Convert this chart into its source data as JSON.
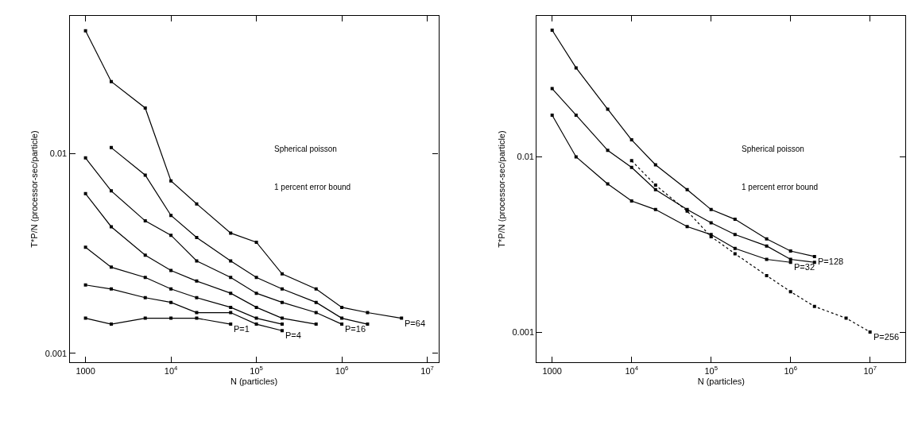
{
  "chart_data": [
    {
      "type": "line",
      "log": "xy",
      "marker": "square",
      "line_style": "solid",
      "xlabel": "N (particles)",
      "ylabel": "T*P/N (processor-sec/particle)",
      "xlim": [
        650,
        13500000
      ],
      "ylim": [
        0.0009,
        0.049
      ],
      "xticks": [
        {
          "value": 1000,
          "label": "1000"
        },
        {
          "value": 10000,
          "label": "10$^{4}$"
        },
        {
          "value": 100000,
          "label": "10$^{5}$"
        },
        {
          "value": 1000000,
          "label": "10$^{6}$"
        },
        {
          "value": 10000000,
          "label": "10$^{7}$"
        }
      ],
      "yticks": [
        0.001,
        0.01
      ],
      "series": [
        {
          "color": "#000000",
          "x": [
            1000,
            2000,
            5000,
            10000,
            20000,
            50000,
            100000,
            200000,
            500000,
            1000000,
            2000000,
            5000000
          ],
          "values": [
            0.0411,
            0.0229,
            0.0169,
            0.0073,
            0.0056,
            0.004,
            0.0036,
            0.0025,
            0.0021,
            0.0017,
            0.0016,
            0.0015
          ]
        },
        {
          "color": "#000000",
          "x": [
            2000,
            5000,
            10000,
            20000,
            50000,
            100000,
            200000,
            500000,
            1000000,
            2000000
          ],
          "values": [
            0.0107,
            0.0078,
            0.0049,
            0.0038,
            0.0029,
            0.0024,
            0.0021,
            0.0018,
            0.0015,
            0.0014
          ]
        },
        {
          "color": "#000000",
          "x": [
            1000,
            2000,
            5000,
            10000,
            20000,
            50000,
            100000,
            200000,
            500000,
            1000000
          ],
          "values": [
            0.0095,
            0.0065,
            0.0046,
            0.0039,
            0.0029,
            0.0024,
            0.002,
            0.0018,
            0.0016,
            0.0014
          ]
        },
        {
          "color": "#000000",
          "x": [
            1000,
            2000,
            5000,
            10000,
            20000,
            50000,
            100000,
            200000,
            500000
          ],
          "values": [
            0.0063,
            0.0043,
            0.0031,
            0.0026,
            0.0023,
            0.002,
            0.0017,
            0.0015,
            0.0014
          ]
        },
        {
          "color": "#000000",
          "x": [
            1000,
            2000,
            5000,
            10000,
            20000,
            50000,
            100000,
            200000
          ],
          "values": [
            0.0034,
            0.0027,
            0.0024,
            0.0021,
            0.0019,
            0.0017,
            0.0015,
            0.0014
          ]
        },
        {
          "color": "#000000",
          "x": [
            1000,
            2000,
            5000,
            10000,
            20000,
            50000,
            100000,
            200000
          ],
          "values": [
            0.0022,
            0.0021,
            0.0019,
            0.0018,
            0.0016,
            0.0016,
            0.0014,
            0.0013
          ]
        },
        {
          "color": "#000000",
          "x": [
            1000,
            2000,
            5000,
            10000,
            20000,
            50000
          ],
          "values": [
            0.0015,
            0.0014,
            0.0015,
            0.0015,
            0.0015,
            0.0014
          ]
        }
      ],
      "annotations": [
        "Spherical poisson",
        "1 percent error bound",
        {
          "text": "P=1",
          "x": 50000,
          "y": 0.0014
        },
        {
          "text": "P=4",
          "x": 200000,
          "y": 0.0013
        },
        {
          "text": "P=16",
          "x": 1000000,
          "y": 0.0014
        },
        {
          "text": "P=64",
          "x": 5000000,
          "y": 0.0015
        }
      ]
    },
    {
      "type": "line",
      "log": "xy",
      "marker": "square",
      "line_style": "solid",
      "xlabel": "N (particles)",
      "ylabel": "T*P/N (processor-sec/particle)",
      "xlim": [
        640,
        28000000
      ],
      "ylim": [
        0.00067,
        0.064
      ],
      "xticks": [
        {
          "value": 1000,
          "label": "1000"
        },
        {
          "value": 10000,
          "label": "10$^{4}$"
        },
        {
          "value": 100000,
          "label": "10$^{5}$"
        },
        {
          "value": 1000000,
          "label": "10$^{6}$"
        },
        {
          "value": 10000000,
          "label": "10$^{7}$"
        }
      ],
      "yticks": [
        0.001,
        0.01
      ],
      "series": [
        {
          "color": "#000000",
          "x": [
            1000,
            2000,
            5000,
            10000,
            20000,
            50000,
            100000,
            200000,
            500000,
            1000000,
            2000000
          ],
          "values": [
            0.0528,
            0.0322,
            0.0187,
            0.0125,
            0.009,
            0.0065,
            0.005,
            0.0044,
            0.0034,
            0.0029,
            0.0027
          ]
        },
        {
          "color": "#000000",
          "x": [
            1000,
            2000,
            5000,
            10000,
            20000,
            50000,
            100000,
            200000,
            500000,
            1000000,
            2000000
          ],
          "values": [
            0.0245,
            0.0173,
            0.0109,
            0.0087,
            0.0065,
            0.005,
            0.0042,
            0.0036,
            0.0031,
            0.0026,
            0.0025
          ]
        },
        {
          "color": "#000000",
          "x": [
            1000,
            2000,
            5000,
            10000,
            20000,
            50000,
            100000,
            200000,
            500000,
            1000000
          ],
          "values": [
            0.0173,
            0.01,
            0.007,
            0.0056,
            0.005,
            0.004,
            0.0036,
            0.003,
            0.0026,
            0.0025
          ]
        },
        {
          "color": "#000000",
          "line_style": "dotted",
          "x": [
            10000,
            20000,
            50000,
            100000,
            200000,
            500000,
            1000000,
            2000000,
            5000000,
            10000000
          ],
          "values": [
            0.0095,
            0.0069,
            0.0049,
            0.0035,
            0.0028,
            0.0021,
            0.0017,
            0.0014,
            0.0012,
            0.001
          ]
        }
      ],
      "annotations": [
        "Spherical poisson",
        "1 percent error bound",
        {
          "text": "P=32",
          "x": 1000000,
          "y": 0.0025
        },
        {
          "text": "P=128",
          "x": 2000000,
          "y": 0.0027
        },
        {
          "text": "P=256",
          "x": 10000000,
          "y": 0.001
        }
      ]
    }
  ]
}
